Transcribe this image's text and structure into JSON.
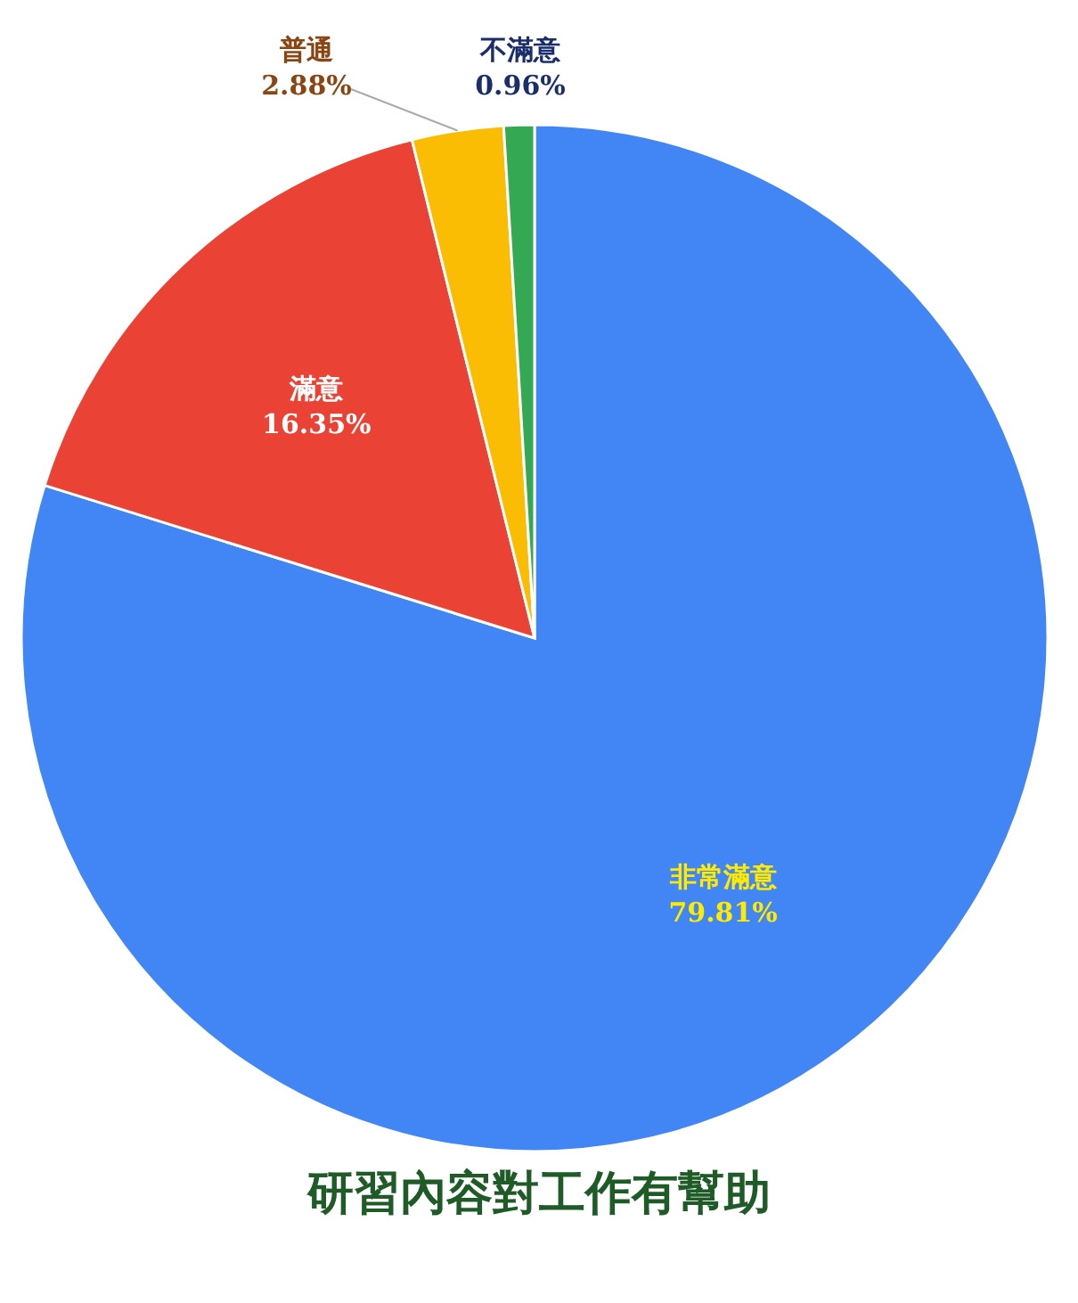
{
  "chart_data": {
    "type": "pie",
    "title": "研習內容對工作有幫助",
    "categories": [
      "非常滿意",
      "滿意",
      "普通",
      "不滿意"
    ],
    "values": [
      79.81,
      16.35,
      2.88,
      0.96
    ],
    "colors": [
      "#4285f4",
      "#ea4335",
      "#fbbc04",
      "#34a853"
    ],
    "value_labels": [
      "79.81%",
      "16.35%",
      "2.88%",
      "0.96%"
    ],
    "legend": false
  }
}
